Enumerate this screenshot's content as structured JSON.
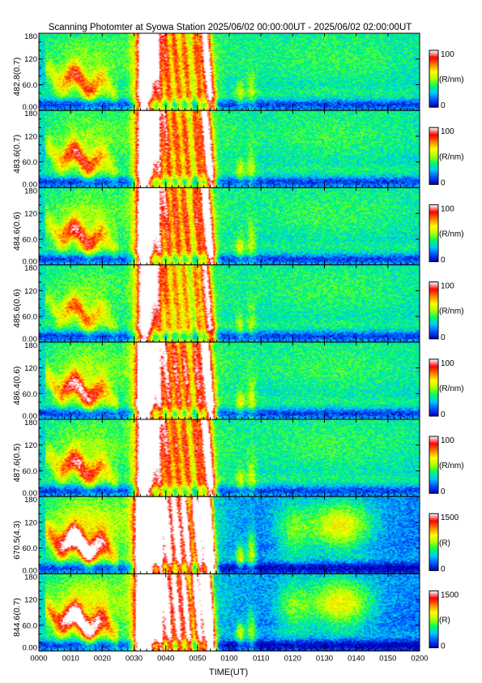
{
  "chart_data": {
    "type": "heatmap",
    "title": "Scanning Photomter at Syowa Station 2025/06/02 00:00:00UT - 2025/06/02 02:00:00UT",
    "xlabel": "TIME(UT)",
    "x_ticks": [
      "0000",
      "0010",
      "0020",
      "0030",
      "0040",
      "0050",
      "0100",
      "0110",
      "0120",
      "0130",
      "0140",
      "0150",
      "0200"
    ],
    "y_ticks": [
      "0.00",
      "60.0",
      "120",
      "180"
    ],
    "ylim": [
      0,
      180
    ],
    "colormap": [
      "#0000b4",
      "#0050ff",
      "#00c8ff",
      "#00ff60",
      "#b4ff00",
      "#ffff00",
      "#ff8000",
      "#ff0000",
      "#ffffff"
    ],
    "panels": [
      {
        "ylabel": "482.8(0.7)",
        "cbar_max": "100",
        "cbar_min": "0",
        "cbar_unit": "(R/nm)",
        "activity": 0.85
      },
      {
        "ylabel": "483.6(0.7)",
        "cbar_max": "100",
        "cbar_min": "0",
        "cbar_unit": "(R/nm)",
        "activity": 0.9
      },
      {
        "ylabel": "484.6(0.6)",
        "cbar_max": "100",
        "cbar_min": "0",
        "cbar_unit": "(R/nm)",
        "activity": 0.95
      },
      {
        "ylabel": "485.6(0.6)",
        "cbar_max": "100",
        "cbar_min": "0",
        "cbar_unit": "(R/nm)",
        "activity": 0.75
      },
      {
        "ylabel": "486.4(0.6)",
        "cbar_max": "100",
        "cbar_min": "0",
        "cbar_unit": "(R/nm)",
        "activity": 1.05
      },
      {
        "ylabel": "487.6(0.5)",
        "cbar_max": "100",
        "cbar_min": "0",
        "cbar_unit": "(R/nm)",
        "activity": 0.95
      },
      {
        "ylabel": "670.5(4.3)",
        "cbar_max": "1500",
        "cbar_min": "0",
        "cbar_unit": "(R)",
        "activity": 1.5
      },
      {
        "ylabel": "844.6(0.7)",
        "cbar_max": "1500",
        "cbar_min": "0",
        "cbar_unit": "(R)",
        "activity": 1.4
      }
    ]
  }
}
